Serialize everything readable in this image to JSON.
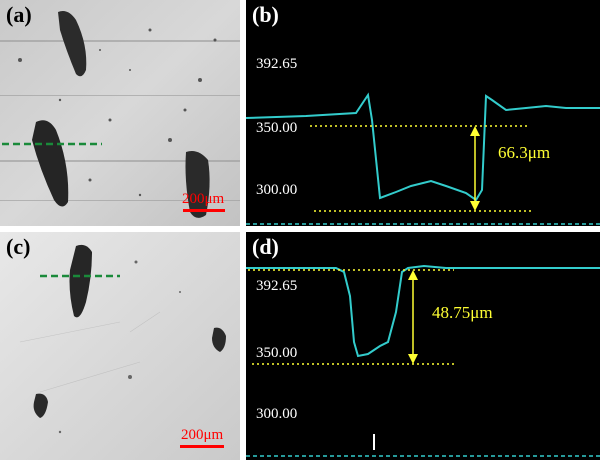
{
  "figure": {
    "panels": [
      {
        "id": "a",
        "label": "(a)",
        "kind": "micrograph",
        "scale_bar": "200μm"
      },
      {
        "id": "b",
        "label": "(b)",
        "kind": "depth-profile",
        "ticks": [
          "392.65",
          "350.00",
          "300.00"
        ],
        "measurement": "66.3μm"
      },
      {
        "id": "c",
        "label": "(c)",
        "kind": "micrograph",
        "scale_bar": "200μm"
      },
      {
        "id": "d",
        "label": "(d)",
        "kind": "depth-profile",
        "ticks": [
          "392.65",
          "350.00",
          "300.00"
        ],
        "measurement": "48.75μm"
      }
    ],
    "colors": {
      "profile": "#33cccc",
      "guide": "#ffff33",
      "section_line": "#1a8a3a",
      "scale_bar": "#ff0000",
      "plot_background": "#000000"
    }
  }
}
